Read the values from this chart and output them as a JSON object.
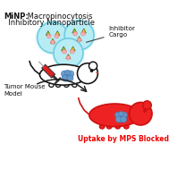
{
  "bg_color": "#ffffff",
  "np_fill": "#b8ecf5",
  "np_edge": "#70ccdf",
  "np_outer_fill": "#d8f5fc",
  "triangle_colors": [
    "#88cc33",
    "#ffcc00",
    "#88cc33",
    "#ffcc00",
    "#88cc33",
    "#ffcc00"
  ],
  "pink_fill": "#ffaaaa",
  "pink_edge": "#dd7777",
  "mouse_white_fill": "#ffffff",
  "mouse_white_edge": "#111111",
  "mouse_red_fill": "#ee2222",
  "mouse_red_edge": "#cc1111",
  "tumor_fill": "#6699cc",
  "tumor_edge": "#4477aa",
  "syringe_red": "#dd2222",
  "syringe_gray": "#aaaaaa",
  "syringe_dark": "#333333",
  "arrow_color": "#222222",
  "text_black": "#111111",
  "text_red": "#ee0000",
  "title_bold": "MiNP:",
  "title_rest": " Macropinocytosis",
  "title_line2": "  Inhibitory Nanoparticle",
  "inhibitor_label": "Inhibitor\nCargo",
  "tumor_label": "Tumor Mouse\nModel",
  "bottom_label": "Uptake by MPS Blocked"
}
